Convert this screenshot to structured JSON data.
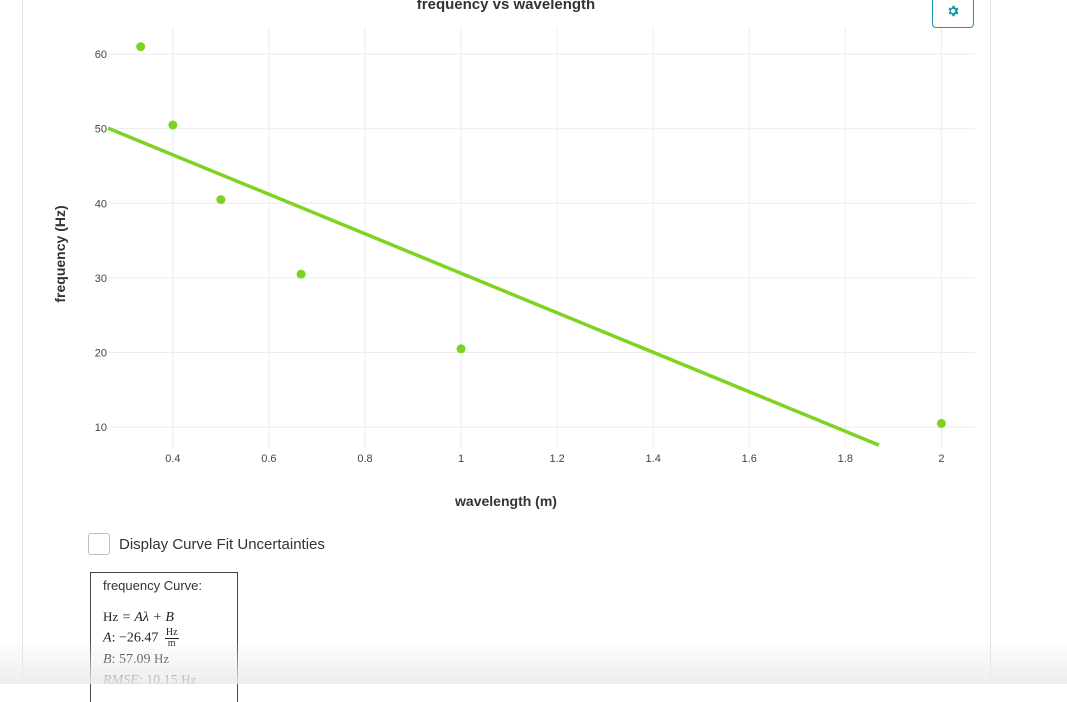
{
  "chart_data": {
    "type": "scatter",
    "title": "frequency vs wavelength",
    "xlabel": "wavelength (m)",
    "ylabel": "frequency (Hz)",
    "xlim": [
      0.265,
      2.07
    ],
    "ylim": [
      7.2,
      63.5
    ],
    "x_ticks": [
      0.4,
      0.6,
      0.8,
      1,
      1.2,
      1.4,
      1.6,
      1.8,
      2
    ],
    "x_tick_labels": [
      "0.4",
      "0.6",
      "0.8",
      "1",
      "1.2",
      "1.4",
      "1.6",
      "1.8",
      "2"
    ],
    "y_ticks": [
      10,
      20,
      30,
      40,
      50,
      60
    ],
    "y_tick_labels": [
      "10",
      "20",
      "30",
      "40",
      "50",
      "60"
    ],
    "grid": true,
    "series": [
      {
        "points": [
          {
            "x": 0.333,
            "y": 61
          },
          {
            "x": 0.4,
            "y": 50.5
          },
          {
            "x": 0.5,
            "y": 40.5
          },
          {
            "x": 0.667,
            "y": 30.5
          },
          {
            "x": 1.0,
            "y": 20.5
          },
          {
            "x": 2.0,
            "y": 10.5
          }
        ],
        "color": "#7ed321"
      }
    ],
    "fit_line": {
      "slope": -26.47,
      "intercept": 57.09,
      "x_range": [
        0.265,
        1.87
      ],
      "color": "#7ed321"
    }
  },
  "controls": {
    "settings_icon": "gear-icon",
    "checkbox_label": "Display Curve Fit Uncertainties",
    "checkbox_checked": false
  },
  "fit_box": {
    "title": "frequency Curve:",
    "equation_lhs": "Hz",
    "equation_rhs": "= Aλ + B",
    "a_label": "A",
    "a_value": ": −26.47",
    "a_unit_num": "Hz",
    "a_unit_den": "m",
    "b_label": "B",
    "b_value": ": 57.09",
    "b_unit": "Hz",
    "rmse_label": "RMSE",
    "rmse_value": ": 10.15",
    "rmse_unit": "Hz"
  }
}
